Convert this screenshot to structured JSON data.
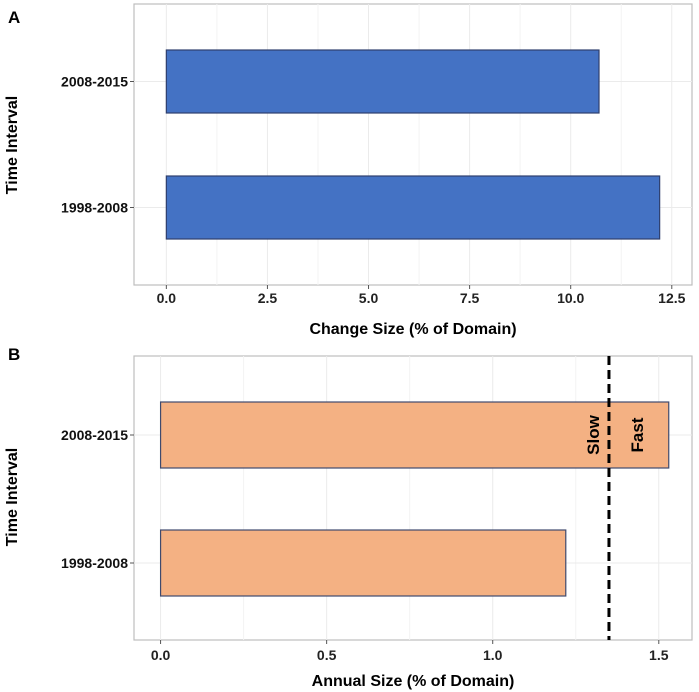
{
  "chart_data": [
    {
      "panel": "A",
      "type": "bar",
      "orientation": "horizontal",
      "categories": [
        "1998-2008",
        "2008-2015"
      ],
      "values": [
        12.2,
        10.7
      ],
      "xlabel": "Change Size (% of Domain)",
      "ylabel": "Time Interval",
      "xlim": [
        -0.8,
        13.0
      ],
      "xticks": [
        0.0,
        2.5,
        5.0,
        7.5,
        10.0,
        12.5
      ],
      "xtick_labels": [
        "0.0",
        "2.5",
        "5.0",
        "7.5",
        "10.0",
        "12.5"
      ],
      "bar_color": "#4472c4",
      "edge_color": "#2f3f6e",
      "grid": true
    },
    {
      "panel": "B",
      "type": "bar",
      "orientation": "horizontal",
      "categories": [
        "1998-2008",
        "2008-2015"
      ],
      "values": [
        1.22,
        1.53
      ],
      "xlabel": "Annual Size (% of Domain)",
      "ylabel": "Time Interval",
      "xlim": [
        -0.08,
        1.6
      ],
      "xticks": [
        0.0,
        0.5,
        1.0,
        1.5
      ],
      "xtick_labels": [
        "0.0",
        "0.5",
        "1.0",
        "1.5"
      ],
      "bar_color": "#f4b183",
      "edge_color": "#3f4a6e",
      "grid": true,
      "threshold": {
        "value": 1.35,
        "style": "dashed",
        "color": "#000000"
      },
      "annotations": [
        "Slow",
        "Fast"
      ]
    }
  ]
}
